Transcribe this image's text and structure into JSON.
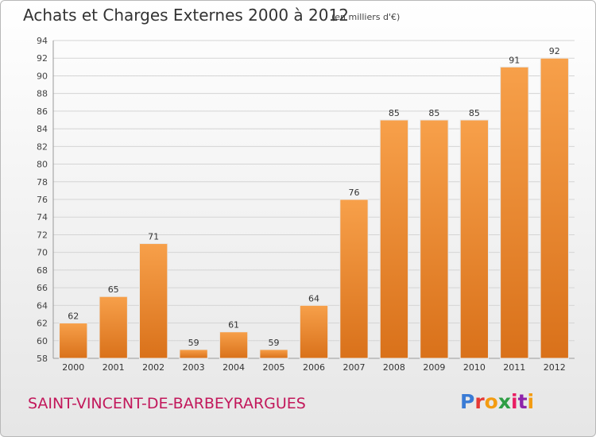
{
  "header": {
    "title": "Achats et Charges Externes 2000 à 2012",
    "unit": "(en milliers d'€)"
  },
  "footer": {
    "commune": "SAINT-VINCENT-DE-BARBEYRARGUES",
    "logo": "Proxiti",
    "logo_colors": [
      "#3a7bd5",
      "#e53935",
      "#f39c12",
      "#2e9e44",
      "#e91e63",
      "#8e24aa",
      "#f39c12"
    ]
  },
  "colors": {
    "bar_top": "#f7a04a",
    "bar_bottom": "#d9711a",
    "grid": "#d4d4d4",
    "axis": "#999999"
  },
  "chart_data": {
    "type": "bar",
    "title": "Achats et Charges Externes 2000 à 2012",
    "subtitle": "(en milliers d'€)",
    "categories": [
      "2000",
      "2001",
      "2002",
      "2003",
      "2004",
      "2005",
      "2006",
      "2007",
      "2008",
      "2009",
      "2010",
      "2011",
      "2012"
    ],
    "values": [
      62,
      65,
      71,
      59,
      61,
      59,
      64,
      76,
      85,
      85,
      85,
      91,
      92
    ],
    "ylim": [
      58,
      94
    ],
    "yticks": [
      58,
      60,
      62,
      64,
      66,
      68,
      70,
      72,
      74,
      76,
      78,
      80,
      82,
      84,
      86,
      88,
      90,
      92,
      94
    ],
    "grid": true,
    "legend": "none"
  }
}
